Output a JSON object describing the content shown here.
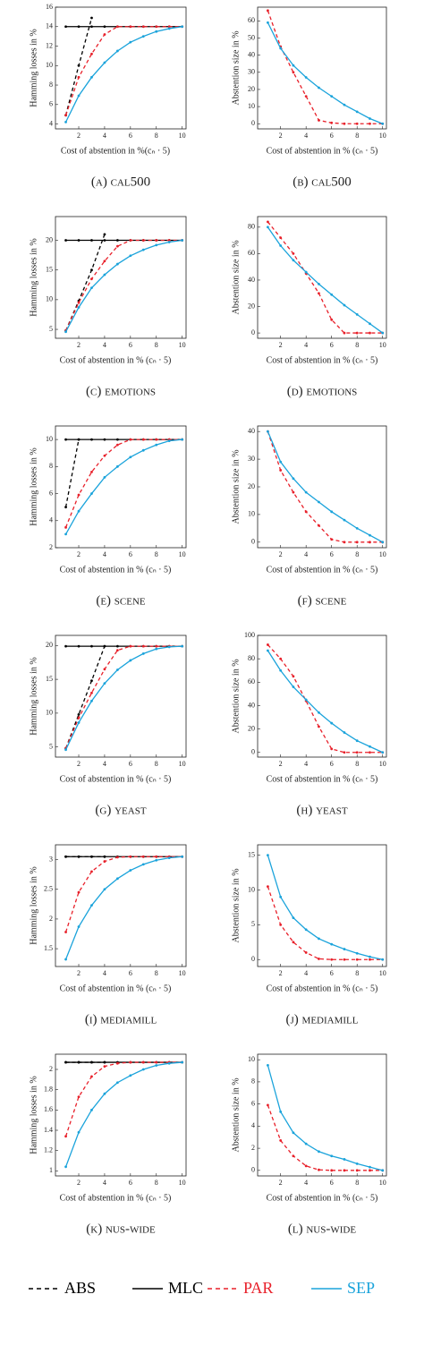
{
  "chart_data": [
    {
      "type": "line",
      "caption": "(a) cal500",
      "xlabel": "Cost of abstention in %(cₙ · 5)",
      "ylabel": "Hamming losses in %",
      "x": [
        1,
        2,
        3,
        4,
        5,
        6,
        7,
        8,
        9,
        10
      ],
      "xlim": [
        0.2,
        10.3
      ],
      "xticks": [
        2,
        4,
        6,
        8,
        10
      ],
      "ylim": [
        3.5,
        16
      ],
      "yticks": [
        4,
        6,
        8,
        10,
        12,
        14,
        16
      ],
      "series": [
        {
          "name": "ABS",
          "color": "#000000",
          "dashed": true,
          "values": [
            4.9,
            10,
            14.9,
            null,
            null,
            null,
            null,
            null,
            null,
            null
          ]
        },
        {
          "name": "MLC",
          "color": "#000000",
          "dashed": false,
          "values": [
            14,
            14,
            14,
            14,
            14,
            14,
            14,
            14,
            14,
            14
          ]
        },
        {
          "name": "PAR",
          "color": "#e8202a",
          "dashed": true,
          "values": [
            4.9,
            8.8,
            11.2,
            13.2,
            14,
            14,
            14,
            14,
            14,
            14
          ]
        },
        {
          "name": "SEP",
          "color": "#1aa3db",
          "dashed": false,
          "values": [
            4.2,
            6.9,
            8.8,
            10.3,
            11.5,
            12.4,
            13,
            13.5,
            13.8,
            14
          ]
        }
      ]
    },
    {
      "type": "line",
      "caption": "(b) cal500",
      "xlabel": "Cost of abstention in % (cₙ · 5)",
      "ylabel": "Abstention size in %",
      "x": [
        1,
        2,
        3,
        4,
        5,
        6,
        7,
        8,
        9,
        10
      ],
      "xlim": [
        0.2,
        10.3
      ],
      "xticks": [
        2,
        4,
        6,
        8,
        10
      ],
      "ylim": [
        -3,
        68
      ],
      "yticks": [
        0,
        10,
        20,
        30,
        40,
        50,
        60
      ],
      "series": [
        {
          "name": "PAR",
          "color": "#e8202a",
          "dashed": true,
          "values": [
            66,
            45,
            30,
            16,
            2,
            0.5,
            0,
            0,
            0,
            0
          ]
        },
        {
          "name": "SEP",
          "color": "#1aa3db",
          "dashed": false,
          "values": [
            59,
            44,
            34,
            27,
            21,
            16,
            11,
            7,
            3,
            0
          ]
        }
      ]
    },
    {
      "type": "line",
      "caption": "(c) emotions",
      "xlabel": "Cost of abstention in % (cₙ · 5)",
      "ylabel": "Hamming losses in %",
      "x": [
        1,
        2,
        3,
        4,
        5,
        6,
        7,
        8,
        9,
        10
      ],
      "xlim": [
        0.2,
        10.3
      ],
      "xticks": [
        2,
        4,
        6,
        8,
        10
      ],
      "ylim": [
        3.5,
        24
      ],
      "yticks": [
        5,
        10,
        15,
        20
      ],
      "series": [
        {
          "name": "ABS",
          "color": "#000000",
          "dashed": true,
          "values": [
            4.8,
            9.8,
            15,
            21,
            null,
            null,
            null,
            null,
            null,
            null
          ]
        },
        {
          "name": "MLC",
          "color": "#000000",
          "dashed": false,
          "values": [
            20,
            20,
            20,
            20,
            20,
            20,
            20,
            20,
            20,
            20
          ]
        },
        {
          "name": "PAR",
          "color": "#e8202a",
          "dashed": true,
          "values": [
            4.8,
            9.5,
            13.5,
            16.5,
            19,
            20,
            20,
            20,
            20,
            20
          ]
        },
        {
          "name": "SEP",
          "color": "#1aa3db",
          "dashed": false,
          "values": [
            4.6,
            8.7,
            12,
            14.2,
            16,
            17.4,
            18.4,
            19.2,
            19.7,
            20
          ]
        }
      ]
    },
    {
      "type": "line",
      "caption": "(d) emotions",
      "xlabel": "Cost of abstention in % (cₙ · 5)",
      "ylabel": "Abstention size in %",
      "x": [
        1,
        2,
        3,
        4,
        5,
        6,
        7,
        8,
        9,
        10
      ],
      "xlim": [
        0.2,
        10.3
      ],
      "xticks": [
        2,
        4,
        6,
        8,
        10
      ],
      "ylim": [
        -4,
        88
      ],
      "yticks": [
        0,
        20,
        40,
        60,
        80
      ],
      "series": [
        {
          "name": "PAR",
          "color": "#e8202a",
          "dashed": true,
          "values": [
            84,
            72,
            60,
            45,
            30,
            10,
            0,
            0,
            0,
            0
          ]
        },
        {
          "name": "SEP",
          "color": "#1aa3db",
          "dashed": false,
          "values": [
            80,
            66,
            55,
            46,
            37,
            29,
            21,
            14,
            7,
            0
          ]
        }
      ]
    },
    {
      "type": "line",
      "caption": "(e) scene",
      "xlabel": "Cost of abstention in % (cₙ · 5)",
      "ylabel": "Hamming losses in %",
      "x": [
        1,
        2,
        3,
        4,
        5,
        6,
        7,
        8,
        9,
        10
      ],
      "xlim": [
        0.2,
        10.3
      ],
      "xticks": [
        2,
        4,
        6,
        8,
        10
      ],
      "ylim": [
        2,
        11
      ],
      "yticks": [
        2,
        4,
        6,
        8,
        10
      ],
      "series": [
        {
          "name": "ABS",
          "color": "#000000",
          "dashed": true,
          "values": [
            5,
            10,
            null,
            null,
            null,
            null,
            null,
            null,
            null,
            null
          ]
        },
        {
          "name": "MLC",
          "color": "#000000",
          "dashed": false,
          "values": [
            10,
            10,
            10,
            10,
            10,
            10,
            10,
            10,
            10,
            10
          ]
        },
        {
          "name": "PAR",
          "color": "#e8202a",
          "dashed": true,
          "values": [
            3.5,
            5.9,
            7.6,
            8.8,
            9.6,
            10,
            10,
            10,
            10,
            10
          ]
        },
        {
          "name": "SEP",
          "color": "#1aa3db",
          "dashed": false,
          "values": [
            3,
            4.7,
            6,
            7.2,
            8,
            8.7,
            9.2,
            9.6,
            9.9,
            10
          ]
        }
      ]
    },
    {
      "type": "line",
      "caption": "(f) scene",
      "xlabel": "Cost of abstention in % (cₙ · 5)",
      "ylabel": "Abstention size in %",
      "x": [
        1,
        2,
        3,
        4,
        5,
        6,
        7,
        8,
        9,
        10
      ],
      "xlim": [
        0.2,
        10.3
      ],
      "xticks": [
        2,
        4,
        6,
        8,
        10
      ],
      "ylim": [
        -2,
        42
      ],
      "yticks": [
        0,
        10,
        20,
        30,
        40
      ],
      "series": [
        {
          "name": "PAR",
          "color": "#e8202a",
          "dashed": true,
          "values": [
            40,
            26,
            18,
            11,
            6,
            1,
            0,
            0,
            0,
            0
          ]
        },
        {
          "name": "SEP",
          "color": "#1aa3db",
          "dashed": false,
          "values": [
            40,
            29,
            23,
            18,
            14.5,
            11,
            8,
            5,
            2.5,
            0
          ]
        }
      ]
    },
    {
      "type": "line",
      "caption": "(g) yeast",
      "xlabel": "Cost of abstention in % (cₙ · 5)",
      "ylabel": "Hamming losses in %",
      "x": [
        1,
        2,
        3,
        4,
        5,
        6,
        7,
        8,
        9,
        10
      ],
      "xlim": [
        0.2,
        10.3
      ],
      "xticks": [
        2,
        4,
        6,
        8,
        10
      ],
      "ylim": [
        3.5,
        21.5
      ],
      "yticks": [
        5,
        10,
        15,
        20
      ],
      "series": [
        {
          "name": "ABS",
          "color": "#000000",
          "dashed": true,
          "values": [
            4.8,
            9.8,
            14.8,
            19.9,
            null,
            null,
            null,
            null,
            null,
            null
          ]
        },
        {
          "name": "MLC",
          "color": "#000000",
          "dashed": false,
          "values": [
            19.9,
            19.9,
            19.9,
            19.9,
            19.9,
            19.9,
            19.9,
            19.9,
            19.9,
            19.9
          ]
        },
        {
          "name": "PAR",
          "color": "#e8202a",
          "dashed": true,
          "values": [
            4.8,
            9.3,
            13,
            16.5,
            19.3,
            19.9,
            19.9,
            19.9,
            19.9,
            19.9
          ]
        },
        {
          "name": "SEP",
          "color": "#1aa3db",
          "dashed": false,
          "values": [
            4.6,
            8.6,
            11.8,
            14.4,
            16.4,
            17.8,
            18.8,
            19.5,
            19.8,
            19.9
          ]
        }
      ]
    },
    {
      "type": "line",
      "caption": "(h) yeast",
      "xlabel": "Cost of abstention in % (cₙ · 5)",
      "ylabel": "Abstention size in %",
      "x": [
        1,
        2,
        3,
        4,
        5,
        6,
        7,
        8,
        9,
        10
      ],
      "xlim": [
        0.2,
        10.3
      ],
      "xticks": [
        2,
        4,
        6,
        8,
        10
      ],
      "ylim": [
        -4,
        100
      ],
      "yticks": [
        0,
        20,
        40,
        60,
        80,
        100
      ],
      "series": [
        {
          "name": "PAR",
          "color": "#e8202a",
          "dashed": true,
          "values": [
            92,
            80,
            65,
            44,
            22,
            3,
            0,
            0,
            0,
            0
          ]
        },
        {
          "name": "SEP",
          "color": "#1aa3db",
          "dashed": false,
          "values": [
            87,
            70,
            56,
            45,
            34,
            25,
            17,
            10,
            5,
            0
          ]
        }
      ]
    },
    {
      "type": "line",
      "caption": "(i) mediamill",
      "xlabel": "Cost of abstention in % (cₙ · 5)",
      "ylabel": "Hamming losses in %",
      "x": [
        1,
        2,
        3,
        4,
        5,
        6,
        7,
        8,
        9,
        10
      ],
      "xlim": [
        0.2,
        10.3
      ],
      "xticks": [
        2,
        4,
        6,
        8,
        10
      ],
      "ylim": [
        1.2,
        3.25
      ],
      "yticks": [
        1.5,
        2,
        2.5,
        3
      ],
      "series": [
        {
          "name": "ABS",
          "color": "#000000",
          "dashed": true,
          "values": [
            3.05,
            3.05,
            3.05,
            3.05,
            null,
            null,
            null,
            null,
            null,
            null
          ]
        },
        {
          "name": "MLC",
          "color": "#000000",
          "dashed": false,
          "values": [
            3.05,
            3.05,
            3.05,
            3.05,
            3.05,
            3.05,
            3.05,
            3.05,
            3.05,
            3.05
          ]
        },
        {
          "name": "PAR",
          "color": "#e8202a",
          "dashed": true,
          "values": [
            1.78,
            2.45,
            2.8,
            2.97,
            3.04,
            3.05,
            3.05,
            3.05,
            3.05,
            3.05
          ]
        },
        {
          "name": "SEP",
          "color": "#1aa3db",
          "dashed": false,
          "values": [
            1.32,
            1.87,
            2.23,
            2.5,
            2.68,
            2.82,
            2.92,
            2.99,
            3.03,
            3.05
          ]
        }
      ]
    },
    {
      "type": "line",
      "caption": "(j) mediamill",
      "xlabel": "Cost of abstention in % (cₙ · 5)",
      "ylabel": "Abstention size in %",
      "x": [
        1,
        2,
        3,
        4,
        5,
        6,
        7,
        8,
        9,
        10
      ],
      "xlim": [
        0.2,
        10.3
      ],
      "xticks": [
        2,
        4,
        6,
        8,
        10
      ],
      "ylim": [
        -1,
        16.5
      ],
      "yticks": [
        0,
        5,
        10,
        15
      ],
      "series": [
        {
          "name": "PAR",
          "color": "#e8202a",
          "dashed": true,
          "values": [
            10.5,
            5,
            2.5,
            1,
            0.1,
            0,
            0,
            0,
            0,
            0
          ]
        },
        {
          "name": "SEP",
          "color": "#1aa3db",
          "dashed": false,
          "values": [
            15,
            9,
            6,
            4.3,
            3,
            2.2,
            1.5,
            0.9,
            0.4,
            0
          ]
        }
      ]
    },
    {
      "type": "line",
      "caption": "(k) nus-wide",
      "xlabel": "Cost of abstention in % (cₙ · 5)",
      "ylabel": "Hamming losses in %",
      "x": [
        1,
        2,
        3,
        4,
        5,
        6,
        7,
        8,
        9,
        10
      ],
      "xlim": [
        0.2,
        10.3
      ],
      "xticks": [
        2,
        4,
        6,
        8,
        10
      ],
      "ylim": [
        0.95,
        2.15
      ],
      "yticks": [
        1,
        1.2,
        1.4,
        1.6,
        1.8,
        2
      ],
      "series": [
        {
          "name": "ABS",
          "color": "#000000",
          "dashed": true,
          "values": [
            2.07,
            2.07,
            2.07,
            2.07,
            null,
            null,
            null,
            null,
            null,
            null
          ]
        },
        {
          "name": "MLC",
          "color": "#000000",
          "dashed": false,
          "values": [
            2.07,
            2.07,
            2.07,
            2.07,
            2.07,
            2.07,
            2.07,
            2.07,
            2.07,
            2.07
          ]
        },
        {
          "name": "PAR",
          "color": "#e8202a",
          "dashed": true,
          "values": [
            1.34,
            1.73,
            1.93,
            2.03,
            2.06,
            2.07,
            2.07,
            2.07,
            2.07,
            2.07
          ]
        },
        {
          "name": "SEP",
          "color": "#1aa3db",
          "dashed": false,
          "values": [
            1.04,
            1.38,
            1.6,
            1.76,
            1.87,
            1.94,
            2,
            2.04,
            2.06,
            2.07
          ]
        }
      ]
    },
    {
      "type": "line",
      "caption": "(l) nus-wide",
      "xlabel": "Cost of abstention in % (cₙ · 5)",
      "ylabel": "Abstention size in %",
      "x": [
        1,
        2,
        3,
        4,
        5,
        6,
        7,
        8,
        9,
        10
      ],
      "xlim": [
        0.2,
        10.3
      ],
      "xticks": [
        2,
        4,
        6,
        8,
        10
      ],
      "ylim": [
        -0.5,
        10.5
      ],
      "yticks": [
        0,
        2,
        4,
        6,
        8,
        10
      ],
      "series": [
        {
          "name": "PAR",
          "color": "#e8202a",
          "dashed": true,
          "values": [
            5.9,
            2.7,
            1.3,
            0.4,
            0.05,
            0,
            0,
            0,
            0,
            0
          ]
        },
        {
          "name": "SEP",
          "color": "#1aa3db",
          "dashed": false,
          "values": [
            9.5,
            5.3,
            3.4,
            2.4,
            1.7,
            1.3,
            1,
            0.6,
            0.3,
            0
          ]
        }
      ]
    }
  ]
}
